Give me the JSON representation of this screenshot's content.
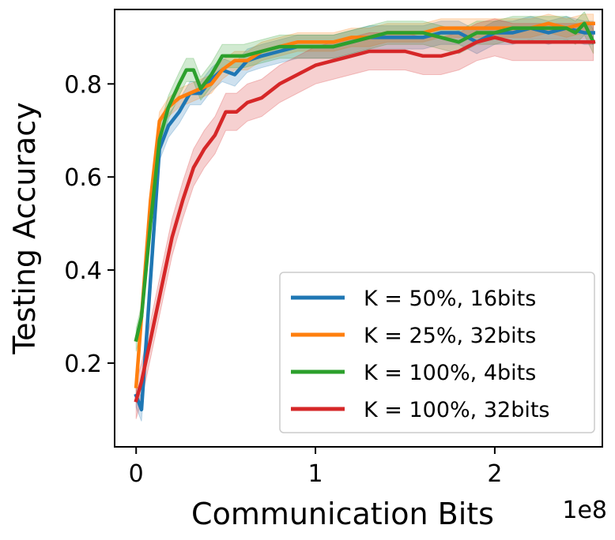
{
  "chart_data": {
    "type": "line",
    "title": "",
    "xlabel": "Communication Bits",
    "ylabel": "Testing Accuracy",
    "x_offset_label": "1e8",
    "xlim": [
      -0.12,
      2.6
    ],
    "ylim": [
      0.02,
      0.96
    ],
    "xticks": [
      0,
      1,
      2
    ],
    "xtick_labels": [
      "0",
      "1",
      "2"
    ],
    "yticks": [
      0.2,
      0.4,
      0.6,
      0.8
    ],
    "ytick_labels": [
      "0.2",
      "0.4",
      "0.6",
      "0.8"
    ],
    "grid": false,
    "legend_position": "lower-right",
    "series": [
      {
        "name": "K = 50%, 16bits",
        "color": "#1f77b4",
        "x": [
          0,
          0.03,
          0.08,
          0.13,
          0.18,
          0.24,
          0.3,
          0.36,
          0.42,
          0.48,
          0.55,
          0.62,
          0.7,
          0.8,
          0.9,
          1.0,
          1.1,
          1.2,
          1.3,
          1.4,
          1.5,
          1.6,
          1.7,
          1.8,
          1.9,
          2.0,
          2.1,
          2.2,
          2.3,
          2.4,
          2.5,
          2.55
        ],
        "y": [
          0.13,
          0.1,
          0.38,
          0.66,
          0.71,
          0.74,
          0.78,
          0.78,
          0.81,
          0.83,
          0.82,
          0.85,
          0.86,
          0.87,
          0.88,
          0.88,
          0.88,
          0.89,
          0.9,
          0.9,
          0.9,
          0.9,
          0.91,
          0.91,
          0.89,
          0.91,
          0.91,
          0.92,
          0.91,
          0.92,
          0.91,
          0.91
        ],
        "band": 0.025
      },
      {
        "name": "K = 25%, 32bits",
        "color": "#ff7f0e",
        "x": [
          0,
          0.03,
          0.08,
          0.13,
          0.18,
          0.24,
          0.3,
          0.36,
          0.42,
          0.48,
          0.55,
          0.62,
          0.7,
          0.8,
          0.9,
          1.0,
          1.1,
          1.2,
          1.3,
          1.4,
          1.5,
          1.6,
          1.7,
          1.8,
          1.9,
          2.0,
          2.1,
          2.2,
          2.3,
          2.4,
          2.5,
          2.55
        ],
        "y": [
          0.15,
          0.3,
          0.55,
          0.72,
          0.75,
          0.77,
          0.78,
          0.79,
          0.8,
          0.83,
          0.85,
          0.85,
          0.87,
          0.88,
          0.89,
          0.89,
          0.89,
          0.9,
          0.9,
          0.91,
          0.91,
          0.91,
          0.92,
          0.92,
          0.92,
          0.92,
          0.92,
          0.92,
          0.93,
          0.92,
          0.93,
          0.93
        ],
        "band": 0.02
      },
      {
        "name": "K = 100%, 4bits",
        "color": "#2ca02c",
        "x": [
          0,
          0.03,
          0.08,
          0.13,
          0.18,
          0.24,
          0.28,
          0.32,
          0.36,
          0.42,
          0.48,
          0.53,
          0.6,
          0.7,
          0.8,
          0.9,
          1.0,
          1.1,
          1.2,
          1.3,
          1.4,
          1.5,
          1.6,
          1.7,
          1.8,
          1.9,
          2.0,
          2.1,
          2.2,
          2.3,
          2.4,
          2.45,
          2.5,
          2.55
        ],
        "y": [
          0.25,
          0.3,
          0.5,
          0.68,
          0.75,
          0.8,
          0.83,
          0.83,
          0.79,
          0.82,
          0.86,
          0.86,
          0.86,
          0.87,
          0.88,
          0.88,
          0.88,
          0.88,
          0.89,
          0.9,
          0.91,
          0.91,
          0.91,
          0.9,
          0.89,
          0.91,
          0.91,
          0.92,
          0.92,
          0.92,
          0.92,
          0.91,
          0.93,
          0.89
        ],
        "band": 0.025
      },
      {
        "name": "K = 100%, 32bits",
        "color": "#d62728",
        "x": [
          0,
          0.03,
          0.08,
          0.14,
          0.2,
          0.26,
          0.32,
          0.38,
          0.44,
          0.5,
          0.56,
          0.62,
          0.7,
          0.8,
          0.9,
          1.0,
          1.1,
          1.2,
          1.3,
          1.4,
          1.5,
          1.6,
          1.7,
          1.8,
          1.9,
          2.0,
          2.1,
          2.2,
          2.3,
          2.4,
          2.5,
          2.55
        ],
        "y": [
          0.12,
          0.16,
          0.25,
          0.36,
          0.47,
          0.55,
          0.62,
          0.66,
          0.69,
          0.74,
          0.74,
          0.76,
          0.77,
          0.8,
          0.82,
          0.84,
          0.85,
          0.86,
          0.87,
          0.87,
          0.87,
          0.86,
          0.86,
          0.87,
          0.89,
          0.9,
          0.89,
          0.89,
          0.89,
          0.89,
          0.89,
          0.89
        ],
        "band": 0.04
      }
    ]
  }
}
